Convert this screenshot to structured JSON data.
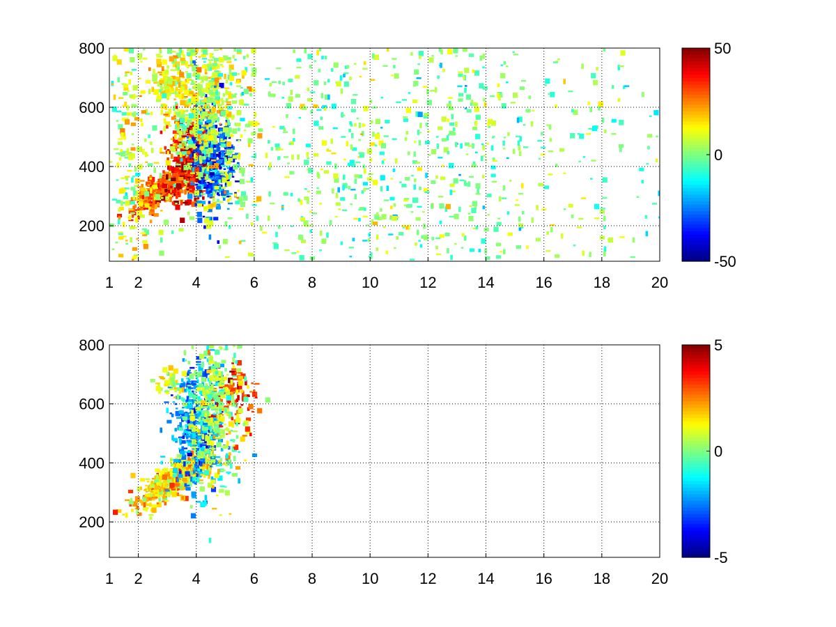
{
  "figure": {
    "background": "#ffffff"
  },
  "colormap": "jet",
  "chart_data": [
    {
      "type": "heatmap",
      "title": "",
      "xlabel": "",
      "ylabel": "",
      "xlim": [
        1,
        20
      ],
      "ylim": [
        80,
        800
      ],
      "x_ticks": [
        1,
        2,
        4,
        6,
        8,
        10,
        12,
        14,
        16,
        18,
        20
      ],
      "x_tick_labels": [
        "1",
        "2",
        "4",
        "6",
        "8",
        "10",
        "12",
        "14",
        "16",
        "18",
        "20"
      ],
      "y_ticks": [
        200,
        400,
        600,
        800
      ],
      "y_tick_labels": [
        "200",
        "400",
        "600",
        "800"
      ],
      "grid": true,
      "colorbar": {
        "clim": [
          -50,
          50
        ],
        "ticks": [
          50,
          0,
          -50
        ],
        "tick_labels": [
          "50",
          "0",
          "-50"
        ],
        "colormap": "jet"
      },
      "features": [
        {
          "name": "",
          "x_center": 3.0,
          "y_center": 330,
          "x_spread": 0.6,
          "y_spread": 45,
          "value": 28,
          "count": 520,
          "curve": true
        },
        {
          "name": "",
          "x_center": 3.8,
          "y_center": 420,
          "x_spread": 0.35,
          "y_spread": 70,
          "value": 38,
          "count": 380,
          "curve": false
        },
        {
          "name": "",
          "x_center": 4.5,
          "y_center": 420,
          "x_spread": 0.35,
          "y_spread": 90,
          "value": -30,
          "count": 380,
          "curve": false
        },
        {
          "name": "",
          "x_center": 4.2,
          "y_center": 600,
          "x_spread": 0.7,
          "y_spread": 140,
          "value": 8,
          "count": 650,
          "curve": false
        },
        {
          "name": "",
          "x_center": 2.9,
          "y_center": 670,
          "x_spread": 0.3,
          "y_spread": 40,
          "value": 12,
          "count": 90,
          "curve": false
        },
        {
          "name": "",
          "x_center": 11.0,
          "y_center": 440,
          "x_spread": 5.5,
          "y_spread": 360,
          "value": 0,
          "count": 1400,
          "curve": false
        },
        {
          "name": "",
          "x_center": 1.6,
          "y_center": 440,
          "x_spread": 0.45,
          "y_spread": 360,
          "value": 10,
          "count": 260,
          "curve": false
        }
      ]
    },
    {
      "type": "heatmap",
      "title": "",
      "xlabel": "",
      "ylabel": "",
      "xlim": [
        1,
        20
      ],
      "ylim": [
        80,
        800
      ],
      "x_ticks": [
        1,
        2,
        4,
        6,
        8,
        10,
        12,
        14,
        16,
        18,
        20
      ],
      "x_tick_labels": [
        "1",
        "2",
        "4",
        "6",
        "8",
        "10",
        "12",
        "14",
        "16",
        "18",
        "20"
      ],
      "y_ticks": [
        200,
        400,
        600,
        800
      ],
      "y_tick_labels": [
        "200",
        "400",
        "600",
        "800"
      ],
      "grid": true,
      "colorbar": {
        "clim": [
          -5,
          5
        ],
        "ticks": [
          5,
          0,
          -5
        ],
        "tick_labels": [
          "5",
          "0",
          "-5"
        ],
        "colormap": "jet"
      },
      "features": [
        {
          "name": "",
          "x_center": 3.2,
          "y_center": 340,
          "x_spread": 0.7,
          "y_spread": 45,
          "value": 1.5,
          "count": 520,
          "curve": true
        },
        {
          "name": "",
          "x_center": 4.0,
          "y_center": 520,
          "x_spread": 0.45,
          "y_spread": 110,
          "value": -2.2,
          "count": 420,
          "curve": false
        },
        {
          "name": "",
          "x_center": 5.2,
          "y_center": 620,
          "x_spread": 0.4,
          "y_spread": 60,
          "value": 3.2,
          "count": 110,
          "curve": false
        },
        {
          "name": "",
          "x_center": 2.9,
          "y_center": 660,
          "x_spread": 0.25,
          "y_spread": 25,
          "value": 1.0,
          "count": 40,
          "curve": false
        },
        {
          "name": "",
          "x_center": 4.6,
          "y_center": 560,
          "x_spread": 0.5,
          "y_spread": 130,
          "value": 0.4,
          "count": 350,
          "curve": false
        }
      ]
    }
  ]
}
